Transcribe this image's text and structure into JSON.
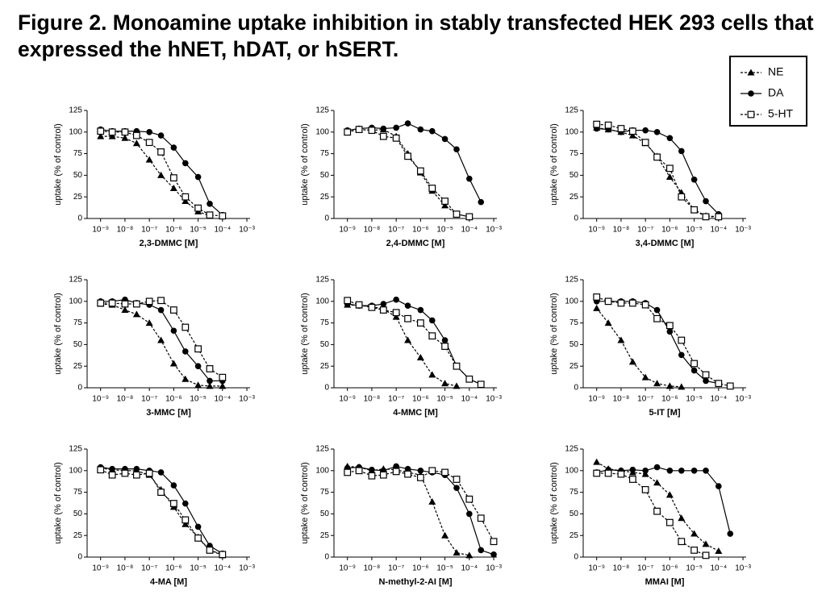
{
  "title": "Figure 2. Monoamine uptake inhibition in stably transfected HEK 293 cells that expressed the hNET, hDAT, or hSERT.",
  "legend": {
    "corner": "top-right",
    "items": [
      {
        "name": "NE",
        "marker": "triangle",
        "line": "dashed",
        "color": "#000000"
      },
      {
        "name": "DA",
        "marker": "circle",
        "line": "solid",
        "color": "#000000"
      },
      {
        "name": "5-HT",
        "marker": "open-square",
        "line": "dashed",
        "color": "#000000"
      }
    ]
  },
  "chart_data": [
    {
      "type": "line",
      "xlabel": "2,3-DMMC [M]",
      "ylabel": "uptake (% of control)",
      "log_x": true,
      "x": [
        1e-09,
        3e-09,
        1e-08,
        3e-08,
        1e-07,
        3e-07,
        1e-06,
        3e-06,
        1e-05,
        3e-05,
        0.0001,
        0.0003,
        0.001
      ],
      "xlim": [
        2.8e-10,
        0.00135
      ],
      "ylim": [
        0,
        125
      ],
      "yticks": [
        0,
        25,
        50,
        75,
        100,
        125
      ],
      "xticks": [
        {
          "value": 1e-09,
          "label": "10⁻⁹"
        },
        {
          "value": 1e-08,
          "label": "10⁻⁸"
        },
        {
          "value": 1e-07,
          "label": "10⁻⁷"
        },
        {
          "value": 1e-06,
          "label": "10⁻⁶"
        },
        {
          "value": 1e-05,
          "label": "10⁻⁵"
        },
        {
          "value": 0.0001,
          "label": "10⁻⁴"
        },
        {
          "value": 0.001,
          "label": "10⁻³"
        }
      ],
      "series": [
        {
          "values": [
            95,
            95,
            93,
            87,
            68,
            50,
            35,
            20,
            8,
            3,
            null,
            null,
            null
          ]
        },
        {
          "values": [
            103,
            101,
            101,
            101,
            100,
            96,
            82,
            64,
            48,
            17,
            4,
            null,
            null
          ]
        },
        {
          "values": [
            101,
            100,
            100,
            96,
            88,
            77,
            47,
            25,
            12,
            4,
            3,
            null,
            null
          ]
        }
      ]
    },
    {
      "type": "line",
      "xlabel": "2,4-DMMC [M]",
      "ylabel": "uptake (% of control)",
      "log_x": true,
      "x": [
        1e-09,
        3e-09,
        1e-08,
        3e-08,
        1e-07,
        3e-07,
        1e-06,
        3e-06,
        1e-05,
        3e-05,
        0.0001,
        0.0003,
        0.001
      ],
      "xlim": [
        2.8e-10,
        0.00135
      ],
      "ylim": [
        0,
        125
      ],
      "yticks": [
        0,
        25,
        50,
        75,
        100,
        125
      ],
      "xticks": [
        {
          "value": 1e-09,
          "label": "10⁻⁹"
        },
        {
          "value": 1e-08,
          "label": "10⁻⁸"
        },
        {
          "value": 1e-07,
          "label": "10⁻⁷"
        },
        {
          "value": 1e-06,
          "label": "10⁻⁶"
        },
        {
          "value": 1e-05,
          "label": "10⁻⁵"
        },
        {
          "value": 0.0001,
          "label": "10⁻⁴"
        },
        {
          "value": 0.001,
          "label": "10⁻³"
        }
      ],
      "series": [
        {
          "values": [
            100,
            103,
            102,
            103,
            95,
            75,
            53,
            32,
            15,
            5,
            2,
            null,
            null
          ]
        },
        {
          "values": [
            102,
            104,
            105,
            104,
            105,
            110,
            103,
            101,
            92,
            80,
            46,
            19,
            null
          ]
        },
        {
          "values": [
            100,
            103,
            102,
            95,
            93,
            72,
            55,
            35,
            20,
            5,
            2,
            null,
            null
          ]
        }
      ]
    },
    {
      "type": "line",
      "xlabel": "3,4-DMMC [M]",
      "ylabel": "uptake (% of control)",
      "log_x": true,
      "x": [
        1e-09,
        3e-09,
        1e-08,
        3e-08,
        1e-07,
        3e-07,
        1e-06,
        3e-06,
        1e-05,
        3e-05,
        0.0001,
        0.0003,
        0.001
      ],
      "xlim": [
        2.8e-10,
        0.00135
      ],
      "ylim": [
        0,
        125
      ],
      "yticks": [
        0,
        25,
        50,
        75,
        100,
        125
      ],
      "xticks": [
        {
          "value": 1e-09,
          "label": "10⁻⁹"
        },
        {
          "value": 1e-08,
          "label": "10⁻⁸"
        },
        {
          "value": 1e-07,
          "label": "10⁻⁷"
        },
        {
          "value": 1e-06,
          "label": "10⁻⁶"
        },
        {
          "value": 1e-05,
          "label": "10⁻⁵"
        },
        {
          "value": 0.0001,
          "label": "10⁻⁴"
        },
        {
          "value": 0.001,
          "label": "10⁻³"
        }
      ],
      "series": [
        {
          "values": [
            105,
            103,
            100,
            96,
            87,
            72,
            48,
            30,
            10,
            3,
            2,
            null,
            null
          ]
        },
        {
          "values": [
            104,
            103,
            100,
            102,
            102,
            100,
            93,
            78,
            45,
            20,
            5,
            null,
            null
          ]
        },
        {
          "values": [
            109,
            108,
            104,
            101,
            88,
            71,
            58,
            25,
            10,
            2,
            2,
            null,
            null
          ]
        }
      ]
    },
    {
      "type": "line",
      "xlabel": "3-MMC [M]",
      "ylabel": "uptake (% of control)",
      "log_x": true,
      "x": [
        1e-09,
        3e-09,
        1e-08,
        3e-08,
        1e-07,
        3e-07,
        1e-06,
        3e-06,
        1e-05,
        3e-05,
        0.0001,
        0.0003,
        0.001
      ],
      "xlim": [
        2.8e-10,
        0.00135
      ],
      "ylim": [
        0,
        125
      ],
      "yticks": [
        0,
        25,
        50,
        75,
        100,
        125
      ],
      "xticks": [
        {
          "value": 1e-09,
          "label": "10⁻⁹"
        },
        {
          "value": 1e-08,
          "label": "10⁻⁸"
        },
        {
          "value": 1e-07,
          "label": "10⁻⁷"
        },
        {
          "value": 1e-06,
          "label": "10⁻⁶"
        },
        {
          "value": 1e-05,
          "label": "10⁻⁵"
        },
        {
          "value": 0.0001,
          "label": "10⁻⁴"
        },
        {
          "value": 0.001,
          "label": "10⁻³"
        }
      ],
      "series": [
        {
          "values": [
            97,
            96,
            90,
            85,
            75,
            55,
            28,
            10,
            3,
            2,
            2,
            null,
            null
          ]
        },
        {
          "values": [
            100,
            100,
            102,
            98,
            96,
            90,
            66,
            42,
            25,
            8,
            8,
            null,
            null
          ]
        },
        {
          "values": [
            98,
            98,
            97,
            97,
            100,
            101,
            90,
            70,
            45,
            22,
            12,
            null,
            null
          ]
        }
      ]
    },
    {
      "type": "line",
      "xlabel": "4-MMC [M]",
      "ylabel": "uptake (% of control)",
      "log_x": true,
      "x": [
        1e-09,
        3e-09,
        1e-08,
        3e-08,
        1e-07,
        3e-07,
        1e-06,
        3e-06,
        1e-05,
        3e-05,
        0.0001,
        0.0003,
        0.001
      ],
      "xlim": [
        2.8e-10,
        0.00135
      ],
      "ylim": [
        0,
        125
      ],
      "yticks": [
        0,
        25,
        50,
        75,
        100,
        125
      ],
      "xticks": [
        {
          "value": 1e-09,
          "label": "10⁻⁹"
        },
        {
          "value": 1e-08,
          "label": "10⁻⁸"
        },
        {
          "value": 1e-07,
          "label": "10⁻⁷"
        },
        {
          "value": 1e-06,
          "label": "10⁻⁶"
        },
        {
          "value": 1e-05,
          "label": "10⁻⁵"
        },
        {
          "value": 0.0001,
          "label": "10⁻⁴"
        },
        {
          "value": 0.001,
          "label": "10⁻³"
        }
      ],
      "series": [
        {
          "values": [
            96,
            95,
            94,
            91,
            82,
            55,
            35,
            15,
            5,
            2,
            null,
            null,
            null
          ]
        },
        {
          "values": [
            97,
            95,
            95,
            97,
            102,
            95,
            90,
            78,
            55,
            25,
            10,
            4,
            null
          ]
        },
        {
          "values": [
            101,
            96,
            93,
            90,
            87,
            80,
            75,
            60,
            48,
            25,
            10,
            4,
            null
          ]
        }
      ]
    },
    {
      "type": "line",
      "xlabel": "5-IT [M]",
      "ylabel": "uptake (% of control)",
      "log_x": true,
      "x": [
        1e-09,
        3e-09,
        1e-08,
        3e-08,
        1e-07,
        3e-07,
        1e-06,
        3e-06,
        1e-05,
        3e-05,
        0.0001,
        0.0003,
        0.001
      ],
      "xlim": [
        2.8e-10,
        0.00135
      ],
      "ylim": [
        0,
        125
      ],
      "yticks": [
        0,
        25,
        50,
        75,
        100,
        125
      ],
      "xticks": [
        {
          "value": 1e-09,
          "label": "10⁻⁹"
        },
        {
          "value": 1e-08,
          "label": "10⁻⁸"
        },
        {
          "value": 1e-07,
          "label": "10⁻⁷"
        },
        {
          "value": 1e-06,
          "label": "10⁻⁶"
        },
        {
          "value": 1e-05,
          "label": "10⁻⁵"
        },
        {
          "value": 0.0001,
          "label": "10⁻⁴"
        },
        {
          "value": 0.001,
          "label": "10⁻³"
        }
      ],
      "series": [
        {
          "values": [
            92,
            75,
            55,
            30,
            12,
            5,
            2,
            1,
            null,
            null,
            null,
            null,
            null
          ]
        },
        {
          "values": [
            100,
            100,
            100,
            100,
            98,
            90,
            65,
            38,
            20,
            8,
            5,
            null,
            null
          ]
        },
        {
          "values": [
            105,
            100,
            98,
            98,
            96,
            80,
            72,
            55,
            28,
            15,
            5,
            2,
            null
          ]
        }
      ]
    },
    {
      "type": "line",
      "xlabel": "4-MA [M]",
      "ylabel": "uptake (% of control)",
      "log_x": true,
      "x": [
        1e-09,
        3e-09,
        1e-08,
        3e-08,
        1e-07,
        3e-07,
        1e-06,
        3e-06,
        1e-05,
        3e-05,
        0.0001,
        0.0003,
        0.001
      ],
      "xlim": [
        2.8e-10,
        0.00135
      ],
      "ylim": [
        0,
        125
      ],
      "yticks": [
        0,
        25,
        50,
        75,
        100,
        125
      ],
      "xticks": [
        {
          "value": 1e-09,
          "label": "10⁻⁹"
        },
        {
          "value": 1e-08,
          "label": "10⁻⁸"
        },
        {
          "value": 1e-07,
          "label": "10⁻⁷"
        },
        {
          "value": 1e-06,
          "label": "10⁻⁶"
        },
        {
          "value": 1e-05,
          "label": "10⁻⁵"
        },
        {
          "value": 0.0001,
          "label": "10⁻⁴"
        },
        {
          "value": 0.001,
          "label": "10⁻³"
        }
      ],
      "series": [
        {
          "values": [
            103,
            101,
            100,
            100,
            95,
            78,
            58,
            38,
            23,
            8,
            2,
            null,
            null
          ]
        },
        {
          "values": [
            104,
            102,
            102,
            102,
            100,
            98,
            83,
            62,
            35,
            13,
            4,
            null,
            null
          ]
        },
        {
          "values": [
            101,
            95,
            97,
            95,
            97,
            75,
            62,
            43,
            22,
            8,
            3,
            null,
            null
          ]
        }
      ]
    },
    {
      "type": "line",
      "xlabel": "N-methyl-2-AI [M]",
      "ylabel": "uptake (% of control)",
      "log_x": true,
      "x": [
        1e-09,
        3e-09,
        1e-08,
        3e-08,
        1e-07,
        3e-07,
        1e-06,
        3e-06,
        1e-05,
        3e-05,
        0.0001,
        0.0003,
        0.001
      ],
      "xlim": [
        2.8e-10,
        0.00135
      ],
      "ylim": [
        0,
        125
      ],
      "yticks": [
        0,
        25,
        50,
        75,
        100,
        125
      ],
      "xticks": [
        {
          "value": 1e-09,
          "label": "10⁻⁹"
        },
        {
          "value": 1e-08,
          "label": "10⁻⁸"
        },
        {
          "value": 1e-07,
          "label": "10⁻⁷"
        },
        {
          "value": 1e-06,
          "label": "10⁻⁶"
        },
        {
          "value": 1e-05,
          "label": "10⁻⁵"
        },
        {
          "value": 0.0001,
          "label": "10⁻⁴"
        },
        {
          "value": 0.001,
          "label": "10⁻³"
        }
      ],
      "series": [
        {
          "values": [
            105,
            104,
            100,
            102,
            101,
            98,
            95,
            64,
            25,
            5,
            2,
            null,
            null
          ]
        },
        {
          "values": [
            103,
            104,
            101,
            100,
            105,
            102,
            100,
            98,
            95,
            80,
            50,
            8,
            3
          ]
        },
        {
          "values": [
            98,
            100,
            94,
            95,
            99,
            96,
            92,
            100,
            98,
            90,
            67,
            45,
            18
          ]
        }
      ]
    },
    {
      "type": "line",
      "xlabel": "MMAI [M]",
      "ylabel": "uptake (% of control)",
      "log_x": true,
      "x": [
        1e-09,
        3e-09,
        1e-08,
        3e-08,
        1e-07,
        3e-07,
        1e-06,
        3e-06,
        1e-05,
        3e-05,
        0.0001,
        0.0003,
        0.001
      ],
      "xlim": [
        2.8e-10,
        0.00135
      ],
      "ylim": [
        0,
        125
      ],
      "yticks": [
        0,
        25,
        50,
        75,
        100,
        125
      ],
      "xticks": [
        {
          "value": 1e-09,
          "label": "10⁻⁹"
        },
        {
          "value": 1e-08,
          "label": "10⁻⁸"
        },
        {
          "value": 1e-07,
          "label": "10⁻⁷"
        },
        {
          "value": 1e-06,
          "label": "10⁻⁶"
        },
        {
          "value": 1e-05,
          "label": "10⁻⁵"
        },
        {
          "value": 0.0001,
          "label": "10⁻⁴"
        },
        {
          "value": 0.001,
          "label": "10⁻³"
        }
      ],
      "series": [
        {
          "values": [
            110,
            102,
            100,
            98,
            96,
            86,
            72,
            45,
            27,
            15,
            7,
            null,
            null
          ]
        },
        {
          "values": [
            98,
            101,
            100,
            101,
            100,
            104,
            100,
            100,
            100,
            100,
            82,
            27,
            null
          ]
        },
        {
          "values": [
            97,
            97,
            96,
            90,
            78,
            53,
            40,
            18,
            8,
            2,
            null,
            null,
            null
          ]
        }
      ]
    }
  ]
}
